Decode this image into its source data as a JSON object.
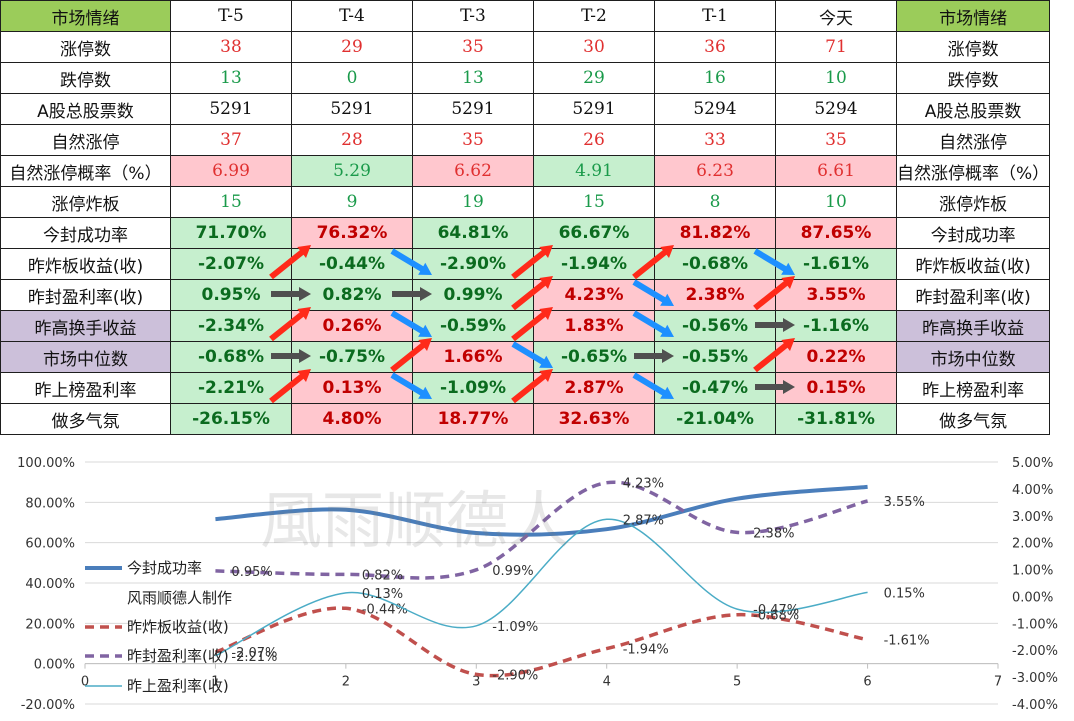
{
  "table": {
    "header": {
      "left": "市场情绪",
      "right": "市场情绪",
      "cols": [
        "T-5",
        "T-4",
        "T-3",
        "T-2",
        "T-1",
        "今天"
      ]
    },
    "rows": [
      {
        "label": "涨停数",
        "values": [
          "38",
          "29",
          "35",
          "30",
          "36",
          "71"
        ],
        "style": "serif",
        "colors": [
          "red",
          "red",
          "red",
          "red",
          "red",
          "red"
        ],
        "bg": [
          "",
          "",
          "",
          "",
          "",
          ""
        ],
        "rbg": ""
      },
      {
        "label": "跌停数",
        "values": [
          "13",
          "0",
          "13",
          "29",
          "16",
          "10"
        ],
        "style": "serif",
        "colors": [
          "grn",
          "grn",
          "grn",
          "grn",
          "grn",
          "grn"
        ],
        "bg": [
          "",
          "",
          "",
          "",
          "",
          ""
        ],
        "rbg": ""
      },
      {
        "label": "A股总股票数",
        "values": [
          "5291",
          "5291",
          "5291",
          "5291",
          "5294",
          "5294"
        ],
        "style": "serif",
        "colors": [
          "",
          "",
          "",
          "",
          "",
          ""
        ],
        "bg": [
          "",
          "",
          "",
          "",
          "",
          ""
        ],
        "rbg": ""
      },
      {
        "label": "自然涨停",
        "values": [
          "37",
          "28",
          "35",
          "26",
          "33",
          "35"
        ],
        "style": "serif",
        "colors": [
          "red",
          "red",
          "red",
          "red",
          "red",
          "red"
        ],
        "bg": [
          "",
          "",
          "",
          "",
          "",
          ""
        ],
        "rbg": ""
      },
      {
        "label": "自然涨停概率（%）",
        "values": [
          "6.99",
          "5.29",
          "6.62",
          "4.91",
          "6.23",
          "6.61"
        ],
        "style": "serif",
        "colors": [
          "red",
          "grn",
          "red",
          "grn",
          "red",
          "red"
        ],
        "bg": [
          "r",
          "g",
          "r",
          "g",
          "r",
          "r"
        ],
        "rbg": "",
        "small": true
      },
      {
        "label": "涨停炸板",
        "values": [
          "15",
          "9",
          "19",
          "15",
          "8",
          "10"
        ],
        "style": "serif",
        "colors": [
          "grn",
          "grn",
          "grn",
          "grn",
          "grn",
          "grn"
        ],
        "bg": [
          "",
          "",
          "",
          "",
          "",
          ""
        ],
        "rbg": ""
      },
      {
        "label": "今封成功率",
        "values": [
          "71.70%",
          "76.32%",
          "64.81%",
          "66.67%",
          "81.82%",
          "87.65%"
        ],
        "style": "bold",
        "colors": [
          "dgrn",
          "dred",
          "dgrn",
          "dgrn",
          "dred",
          "dred"
        ],
        "bg": [
          "g",
          "r",
          "g",
          "g",
          "r",
          "r"
        ],
        "rbg": ""
      },
      {
        "label": "昨炸板收益(收)",
        "values": [
          "-2.07%",
          "-0.44%",
          "-2.90%",
          "-1.94%",
          "-0.68%",
          "-1.61%"
        ],
        "style": "bold",
        "colors": [
          "dgrn",
          "dgrn",
          "dgrn",
          "dgrn",
          "dgrn",
          "dgrn"
        ],
        "bg": [
          "g",
          "g",
          "g",
          "g",
          "g",
          "g"
        ],
        "rbg": ""
      },
      {
        "label": "昨封盈利率(收)",
        "values": [
          "0.95%",
          "0.82%",
          "0.99%",
          "4.23%",
          "2.38%",
          "3.55%"
        ],
        "style": "bold",
        "colors": [
          "dgrn",
          "dgrn",
          "dgrn",
          "dred",
          "dred",
          "dred"
        ],
        "bg": [
          "g",
          "g",
          "g",
          "r",
          "r",
          "r"
        ],
        "rbg": ""
      },
      {
        "label": "昨高换手收益",
        "values": [
          "-2.34%",
          "0.26%",
          "-0.59%",
          "1.83%",
          "-0.56%",
          "-1.16%"
        ],
        "style": "bold",
        "colors": [
          "dgrn",
          "dred",
          "dgrn",
          "dred",
          "dgrn",
          "dgrn"
        ],
        "bg": [
          "g",
          "r",
          "g",
          "r",
          "g",
          "g"
        ],
        "rbg": "p"
      },
      {
        "label": "市场中位数",
        "values": [
          "-0.68%",
          "-0.75%",
          "1.66%",
          "-0.65%",
          "-0.55%",
          "0.22%"
        ],
        "style": "bold",
        "colors": [
          "dgrn",
          "dgrn",
          "dred",
          "dgrn",
          "dgrn",
          "dred"
        ],
        "bg": [
          "g",
          "g",
          "r",
          "g",
          "g",
          "r"
        ],
        "rbg": "p"
      },
      {
        "label": "昨上榜盈利率",
        "values": [
          "-2.21%",
          "0.13%",
          "-1.09%",
          "2.87%",
          "-0.47%",
          "0.15%"
        ],
        "style": "bold",
        "colors": [
          "dgrn",
          "dred",
          "dgrn",
          "dred",
          "dgrn",
          "dred"
        ],
        "bg": [
          "g",
          "r",
          "g",
          "r",
          "g",
          "r"
        ],
        "rbg": ""
      },
      {
        "label": "做多气氛",
        "values": [
          "-26.15%",
          "4.80%",
          "18.77%",
          "32.63%",
          "-21.04%",
          "-31.81%"
        ],
        "style": "bold",
        "colors": [
          "dgrn",
          "dred",
          "dred",
          "dred",
          "dgrn",
          "dgrn"
        ],
        "bg": [
          "g",
          "r",
          "r",
          "r",
          "g",
          "g"
        ],
        "rbg": ""
      }
    ]
  },
  "arrows": [
    {
      "row": 7,
      "from": 0,
      "color": "red"
    },
    {
      "row": 7,
      "from": 1,
      "color": "blue"
    },
    {
      "row": 7,
      "from": 2,
      "color": "red"
    },
    {
      "row": 7,
      "from": 3,
      "color": "red"
    },
    {
      "row": 7,
      "from": 4,
      "color": "blue"
    },
    {
      "row": 8,
      "from": 0,
      "color": "gray"
    },
    {
      "row": 8,
      "from": 1,
      "color": "gray"
    },
    {
      "row": 8,
      "from": 2,
      "color": "red"
    },
    {
      "row": 8,
      "from": 3,
      "color": "blue"
    },
    {
      "row": 8,
      "from": 4,
      "color": "red"
    },
    {
      "row": 9,
      "from": 0,
      "color": "red"
    },
    {
      "row": 9,
      "from": 1,
      "color": "blue"
    },
    {
      "row": 9,
      "from": 2,
      "color": "red"
    },
    {
      "row": 9,
      "from": 3,
      "color": "blue"
    },
    {
      "row": 9,
      "from": 4,
      "color": "gray"
    },
    {
      "row": 10,
      "from": 0,
      "color": "gray"
    },
    {
      "row": 10,
      "from": 1,
      "color": "red"
    },
    {
      "row": 10,
      "from": 2,
      "color": "blue"
    },
    {
      "row": 10,
      "from": 3,
      "color": "gray"
    },
    {
      "row": 10,
      "from": 4,
      "color": "red"
    },
    {
      "row": 11,
      "from": 0,
      "color": "red"
    },
    {
      "row": 11,
      "from": 1,
      "color": "blue"
    },
    {
      "row": 11,
      "from": 2,
      "color": "red"
    },
    {
      "row": 11,
      "from": 3,
      "color": "blue"
    },
    {
      "row": 11,
      "from": 4,
      "color": "gray"
    }
  ],
  "arrow_colors": {
    "red": "#ff2a1a",
    "blue": "#1e90ff",
    "gray": "#505050"
  },
  "watermark": "風雨顺德人",
  "chart_data": {
    "type": "line",
    "x": [
      1,
      2,
      3,
      4,
      5,
      6
    ],
    "xlim": [
      0,
      7
    ],
    "xticks": [
      "0",
      "1",
      "2",
      "3",
      "4",
      "5",
      "6",
      "7"
    ],
    "left_axis": {
      "min": -20,
      "max": 100,
      "ticks": [
        "-20.00%",
        "0.00%",
        "20.00%",
        "40.00%",
        "60.00%",
        "80.00%",
        "100.00%"
      ]
    },
    "right_axis": {
      "min": -4,
      "max": 5,
      "ticks": [
        "-4.00%",
        "-3.00%",
        "-2.00%",
        "-1.00%",
        "0.00%",
        "1.00%",
        "2.00%",
        "3.00%",
        "4.00%",
        "5.00%"
      ]
    },
    "series": [
      {
        "name": "今封成功率",
        "axis": "left",
        "values": [
          71.7,
          76.32,
          64.81,
          66.67,
          81.82,
          87.65
        ],
        "color": "#4a7ebb",
        "dash": "",
        "width": 4,
        "labels": []
      },
      {
        "name": "昨炸板收益(收)",
        "axis": "right",
        "values": [
          -2.07,
          -0.44,
          -2.9,
          -1.94,
          -0.68,
          -1.61
        ],
        "color": "#c0504d",
        "dash": "9,6",
        "width": 3.5,
        "labels": [
          "-2.07%",
          "-0.44%",
          "-2.90%",
          "-1.94%",
          "-0.68%",
          "-1.61%"
        ]
      },
      {
        "name": "昨封盈利率(收)",
        "axis": "right",
        "values": [
          0.95,
          0.82,
          0.99,
          4.23,
          2.38,
          3.55
        ],
        "color": "#8064a2",
        "dash": "9,6",
        "width": 3.5,
        "labels": [
          "0.95%",
          "0.82%",
          "0.99%",
          "4.23%",
          "2.38%",
          "3.55%"
        ]
      },
      {
        "name": "昨上盈利率(收)",
        "axis": "right",
        "values": [
          -2.21,
          0.13,
          -1.09,
          2.87,
          -0.47,
          0.15
        ],
        "color": "#4bacc6",
        "dash": "",
        "width": 1.5,
        "labels": [
          "-2.21%",
          "0.13%",
          "-1.09%",
          "2.87%",
          "-0.47%",
          "0.15%"
        ]
      }
    ],
    "legend_note": "风雨顺德人制作",
    "legend_position": "left"
  }
}
